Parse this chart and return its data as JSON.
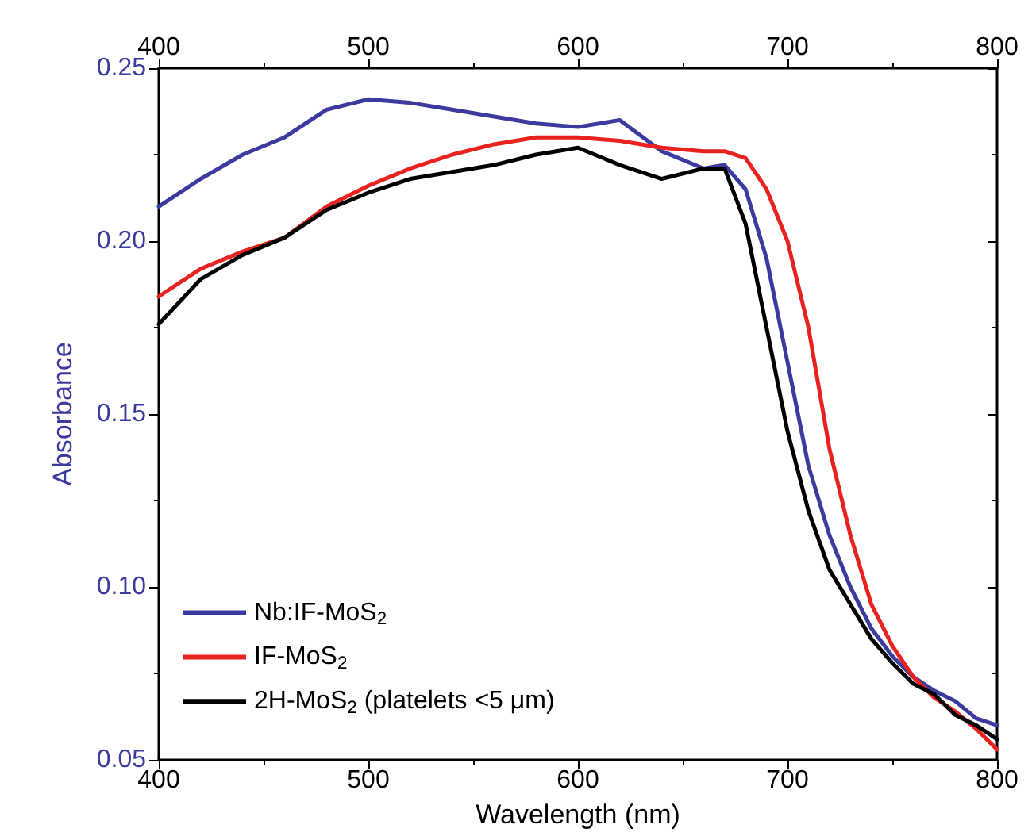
{
  "chart_data": {
    "type": "line",
    "xlabel": "Wavelength (nm)",
    "ylabel": "Absorbance",
    "xlim": [
      400,
      800
    ],
    "xticks": [
      400,
      500,
      600,
      700,
      800
    ],
    "x2lim": [
      400,
      800
    ],
    "x2ticks": [
      400,
      500,
      600,
      700,
      800
    ],
    "ylim": [
      0.05,
      0.25
    ],
    "yticks": [
      0.05,
      {
        "value": 0.1,
        "label": "0.10"
      },
      0.15,
      {
        "value": 0.2,
        "label": "0.20"
      },
      0.25
    ],
    "x": [
      400,
      420,
      440,
      460,
      480,
      500,
      520,
      540,
      560,
      580,
      600,
      620,
      640,
      660,
      670,
      680,
      690,
      700,
      710,
      720,
      730,
      740,
      750,
      760,
      770,
      780,
      790,
      800
    ],
    "series": [
      {
        "name": "Nb:IF-MoS$_{2}$",
        "color": "#3b3a9e",
        "values": [
          0.21,
          0.218,
          0.225,
          0.23,
          0.238,
          0.241,
          0.24,
          0.238,
          0.236,
          0.234,
          0.233,
          0.235,
          0.226,
          0.221,
          0.222,
          0.215,
          0.195,
          0.165,
          0.135,
          0.115,
          0.1,
          0.088,
          0.08,
          0.074,
          0.07,
          0.067,
          0.062,
          0.06
        ]
      },
      {
        "name": "IF-MoS$_{2}$",
        "color": "#e8221f",
        "values": [
          0.184,
          0.192,
          0.197,
          0.201,
          0.21,
          0.216,
          0.221,
          0.225,
          0.228,
          0.23,
          0.23,
          0.229,
          0.227,
          0.226,
          0.226,
          0.224,
          0.215,
          0.2,
          0.175,
          0.14,
          0.115,
          0.095,
          0.083,
          0.074,
          0.068,
          0.064,
          0.059,
          0.053
        ]
      },
      {
        "name": "2H-MoS$_{2}$ (platelets <5 μm)",
        "color": "#000000",
        "values": [
          0.176,
          0.189,
          0.196,
          0.201,
          0.209,
          0.214,
          0.218,
          0.22,
          0.222,
          0.225,
          0.227,
          0.222,
          0.218,
          0.221,
          0.221,
          0.205,
          0.175,
          0.145,
          0.122,
          0.105,
          0.095,
          0.085,
          0.078,
          0.072,
          0.069,
          0.063,
          0.06,
          0.056
        ]
      }
    ],
    "legend": "bottom left",
    "grid": false,
    "marker": "none",
    "line_style": "solid"
  }
}
